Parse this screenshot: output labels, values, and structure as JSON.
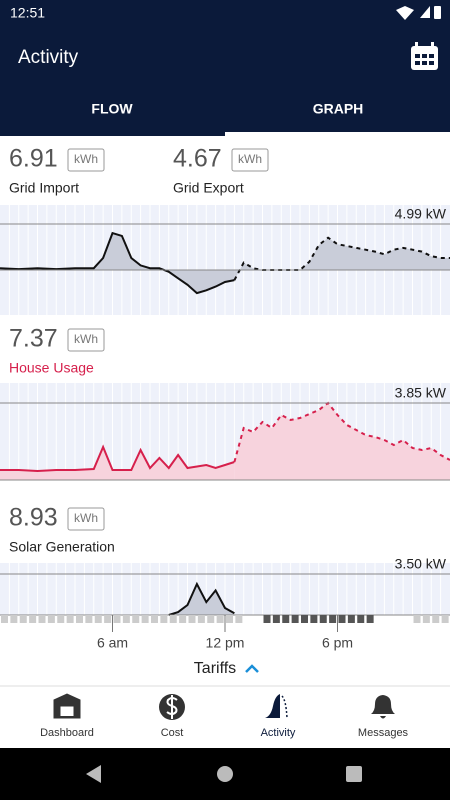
{
  "status_bar": {
    "time": "12:51"
  },
  "app_bar": {
    "title": "Activity"
  },
  "tabs": [
    "FLOW",
    "GRAPH"
  ],
  "metrics": [
    [
      {
        "value": "6.91",
        "unit": "kWh",
        "label": "Grid Import"
      },
      {
        "value": "4.67",
        "unit": "kWh",
        "label": "Grid Export"
      }
    ],
    [
      {
        "value": "7.37",
        "unit": "kWh",
        "label": "House Usage"
      }
    ],
    [
      {
        "value": "8.93",
        "unit": "kWh",
        "label": "Solar Generation"
      }
    ]
  ],
  "charts": [
    {
      "type": "line",
      "xlim": [
        0,
        24
      ],
      "ylim": [
        -4.88,
        7.05
      ],
      "yticks": [
        0,
        {
          "value": 4.99,
          "label": "4.99 kW"
        }
      ],
      "fill": "#c9cdd9",
      "series": [
        {
          "color": "#111111",
          "dashed": false,
          "x": [
            0,
            1,
            2,
            3,
            4,
            5,
            5.5,
            6,
            6.5,
            7,
            7.5,
            8,
            8.5,
            9,
            9.5,
            10,
            10.5,
            11,
            11.5,
            12,
            12.5
          ],
          "values": [
            0.2,
            0.1,
            0.2,
            0.1,
            0.2,
            0.2,
            1.3,
            4.0,
            3.7,
            1.3,
            0.5,
            0.2,
            0.2,
            -0.2,
            -0.9,
            -1.6,
            -2.5,
            -2.2,
            -1.8,
            -1.3,
            -1.1
          ]
        },
        {
          "color": "#111111",
          "dashed": true,
          "x": [
            12.5,
            13,
            13.5,
            14,
            15,
            16,
            16.5,
            17,
            17.5,
            18,
            18.5,
            19,
            19.5,
            20,
            20.5,
            21,
            21.5,
            22,
            22.5,
            23,
            23.5,
            24
          ],
          "values": [
            -1.1,
            0.8,
            0.2,
            0,
            0,
            0,
            0.9,
            2.7,
            3.5,
            2.8,
            2.6,
            2.4,
            2.2,
            2.0,
            1.7,
            2.2,
            2.4,
            2.2,
            2.0,
            1.5,
            1.3,
            1.3
          ]
        }
      ]
    },
    {
      "type": "line",
      "xlim": [
        0,
        24
      ],
      "ylim": [
        0,
        4.85
      ],
      "yticks": [
        0,
        {
          "value": 3.85,
          "label": "3.85 kW"
        }
      ],
      "fill": "#f7d3dd",
      "series": [
        {
          "color": "#d6204c",
          "dashed": false,
          "x": [
            0,
            1,
            2,
            3,
            4,
            5,
            5.5,
            6,
            7,
            7.5,
            8,
            8.5,
            9,
            9.5,
            10,
            11,
            11.5,
            12,
            12.5
          ],
          "values": [
            0.5,
            0.5,
            0.45,
            0.5,
            0.5,
            0.55,
            1.65,
            0.5,
            0.5,
            1.5,
            0.6,
            1.1,
            0.6,
            1.25,
            0.6,
            0.75,
            0.6,
            0.75,
            0.9
          ]
        },
        {
          "color": "#d6204c",
          "dashed": true,
          "x": [
            12.5,
            13,
            13.5,
            14,
            14.5,
            15,
            15.5,
            16,
            16.5,
            17,
            17.5,
            18,
            18.5,
            19,
            19.5,
            20,
            20.5,
            21,
            21.5,
            22,
            22.5,
            23,
            23.5,
            24
          ],
          "values": [
            0.9,
            2.6,
            2.4,
            2.9,
            2.6,
            3.25,
            3.0,
            3.1,
            3.3,
            3.5,
            3.85,
            3.25,
            2.75,
            2.5,
            2.25,
            2.15,
            2.0,
            1.75,
            2.0,
            1.6,
            1.5,
            1.6,
            1.25,
            1.0
          ]
        }
      ]
    },
    {
      "type": "line",
      "xlim": [
        0,
        24
      ],
      "ylim": [
        0,
        4.44
      ],
      "yticks": [
        0,
        {
          "value": 3.5,
          "label": "3.50 kW"
        }
      ],
      "fill": "#c9cdd9",
      "series": [
        {
          "color": "#111111",
          "dashed": false,
          "x": [
            9,
            9.5,
            10,
            10.5,
            11,
            11.5,
            12,
            12.5
          ],
          "values": [
            0,
            0.25,
            0.85,
            2.65,
            1.1,
            2.1,
            0.6,
            0.15
          ]
        }
      ]
    }
  ],
  "xticks": [
    {
      "value": 6,
      "label": "6 am"
    },
    {
      "value": 12,
      "label": "12 pm"
    },
    {
      "value": 18,
      "label": "6 pm"
    }
  ],
  "tariffs": "Tariffs",
  "nav": [
    "Dashboard",
    "Cost",
    "Activity",
    "Messages"
  ]
}
